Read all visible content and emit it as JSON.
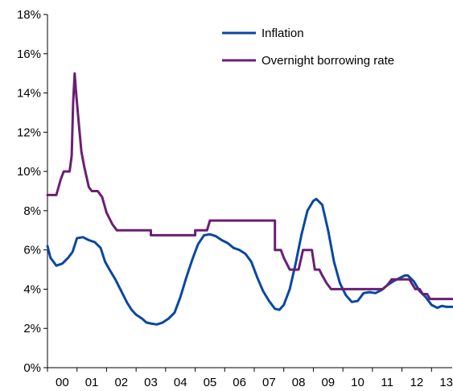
{
  "chart_data": {
    "type": "line",
    "title": "",
    "xlabel": "",
    "ylabel": "",
    "ylim": [
      0,
      18
    ],
    "xlim": [
      2000,
      2013.7
    ],
    "grid": false,
    "legend_position": "top-right",
    "y_ticks": [
      0,
      2,
      4,
      6,
      8,
      10,
      12,
      14,
      16,
      18
    ],
    "y_tick_labels": [
      "0%",
      "2%",
      "4%",
      "6%",
      "8%",
      "10%",
      "12%",
      "14%",
      "16%",
      "18%"
    ],
    "x_ticks": [
      2000.5,
      2001.5,
      2002.5,
      2003.5,
      2004.5,
      2005.5,
      2006.5,
      2007.5,
      2008.5,
      2009.5,
      2010.5,
      2011.5,
      2012.5,
      2013.5
    ],
    "x_tick_labels": [
      "00",
      "01",
      "02",
      "03",
      "04",
      "05",
      "06",
      "07",
      "08",
      "09",
      "10",
      "11",
      "12",
      "13"
    ],
    "series": [
      {
        "name": "Inflation",
        "color": "#0a47a3",
        "points": [
          [
            2000.0,
            6.2
          ],
          [
            2000.1,
            5.6
          ],
          [
            2000.3,
            5.2
          ],
          [
            2000.5,
            5.3
          ],
          [
            2000.7,
            5.6
          ],
          [
            2000.85,
            5.9
          ],
          [
            2001.0,
            6.6
          ],
          [
            2001.2,
            6.65
          ],
          [
            2001.4,
            6.5
          ],
          [
            2001.6,
            6.4
          ],
          [
            2001.8,
            6.1
          ],
          [
            2001.95,
            5.4
          ],
          [
            2002.1,
            5.0
          ],
          [
            2002.3,
            4.5
          ],
          [
            2002.5,
            3.9
          ],
          [
            2002.7,
            3.3
          ],
          [
            2002.85,
            2.95
          ],
          [
            2003.0,
            2.7
          ],
          [
            2003.2,
            2.5
          ],
          [
            2003.35,
            2.3
          ],
          [
            2003.5,
            2.25
          ],
          [
            2003.7,
            2.2
          ],
          [
            2003.9,
            2.3
          ],
          [
            2004.1,
            2.5
          ],
          [
            2004.3,
            2.8
          ],
          [
            2004.5,
            3.6
          ],
          [
            2004.7,
            4.6
          ],
          [
            2004.9,
            5.5
          ],
          [
            2005.1,
            6.3
          ],
          [
            2005.3,
            6.75
          ],
          [
            2005.5,
            6.8
          ],
          [
            2005.7,
            6.7
          ],
          [
            2005.9,
            6.5
          ],
          [
            2006.1,
            6.35
          ],
          [
            2006.3,
            6.1
          ],
          [
            2006.5,
            6.0
          ],
          [
            2006.7,
            5.8
          ],
          [
            2006.9,
            5.4
          ],
          [
            2007.1,
            4.6
          ],
          [
            2007.3,
            3.9
          ],
          [
            2007.5,
            3.4
          ],
          [
            2007.7,
            3.0
          ],
          [
            2007.85,
            2.95
          ],
          [
            2008.0,
            3.2
          ],
          [
            2008.2,
            4.0
          ],
          [
            2008.4,
            5.3
          ],
          [
            2008.6,
            6.8
          ],
          [
            2008.8,
            8.0
          ],
          [
            2009.0,
            8.5
          ],
          [
            2009.1,
            8.6
          ],
          [
            2009.3,
            8.3
          ],
          [
            2009.5,
            7.0
          ],
          [
            2009.7,
            5.4
          ],
          [
            2009.9,
            4.3
          ],
          [
            2010.1,
            3.7
          ],
          [
            2010.3,
            3.35
          ],
          [
            2010.5,
            3.4
          ],
          [
            2010.7,
            3.8
          ],
          [
            2010.9,
            3.85
          ],
          [
            2011.1,
            3.8
          ],
          [
            2011.3,
            3.95
          ],
          [
            2011.5,
            4.2
          ],
          [
            2011.7,
            4.4
          ],
          [
            2011.9,
            4.55
          ],
          [
            2012.1,
            4.7
          ],
          [
            2012.2,
            4.7
          ],
          [
            2012.4,
            4.4
          ],
          [
            2012.6,
            3.9
          ],
          [
            2012.8,
            3.6
          ],
          [
            2013.0,
            3.2
          ],
          [
            2013.2,
            3.05
          ],
          [
            2013.35,
            3.15
          ],
          [
            2013.5,
            3.1
          ],
          [
            2013.7,
            3.1
          ]
        ]
      },
      {
        "name": "Overnight borrowing rate",
        "color": "#6b1f73",
        "points": [
          [
            2000.0,
            8.8
          ],
          [
            2000.3,
            8.8
          ],
          [
            2000.45,
            9.6
          ],
          [
            2000.55,
            10.0
          ],
          [
            2000.75,
            10.0
          ],
          [
            2000.82,
            10.8
          ],
          [
            2000.87,
            13.5
          ],
          [
            2000.92,
            15.0
          ],
          [
            2000.97,
            14.0
          ],
          [
            2001.05,
            12.6
          ],
          [
            2001.15,
            11.0
          ],
          [
            2001.25,
            10.2
          ],
          [
            2001.4,
            9.2
          ],
          [
            2001.5,
            9.0
          ],
          [
            2001.7,
            9.0
          ],
          [
            2001.85,
            8.7
          ],
          [
            2002.0,
            7.9
          ],
          [
            2002.2,
            7.3
          ],
          [
            2002.35,
            7.0
          ],
          [
            2003.5,
            7.0
          ],
          [
            2003.5,
            6.75
          ],
          [
            2005.0,
            6.75
          ],
          [
            2005.0,
            7.0
          ],
          [
            2005.4,
            7.0
          ],
          [
            2005.5,
            7.5
          ],
          [
            2007.7,
            7.5
          ],
          [
            2007.7,
            6.0
          ],
          [
            2007.9,
            6.0
          ],
          [
            2008.0,
            5.6
          ],
          [
            2008.2,
            5.0
          ],
          [
            2008.5,
            5.0
          ],
          [
            2008.65,
            6.0
          ],
          [
            2008.95,
            6.0
          ],
          [
            2009.05,
            5.0
          ],
          [
            2009.2,
            5.0
          ],
          [
            2009.3,
            4.7
          ],
          [
            2009.45,
            4.3
          ],
          [
            2009.6,
            4.0
          ],
          [
            2011.35,
            4.0
          ],
          [
            2011.5,
            4.2
          ],
          [
            2011.65,
            4.5
          ],
          [
            2012.25,
            4.5
          ],
          [
            2012.35,
            4.25
          ],
          [
            2012.45,
            4.0
          ],
          [
            2012.6,
            4.0
          ],
          [
            2012.7,
            3.75
          ],
          [
            2012.85,
            3.75
          ],
          [
            2012.95,
            3.5
          ],
          [
            2013.7,
            3.5
          ]
        ]
      }
    ]
  }
}
